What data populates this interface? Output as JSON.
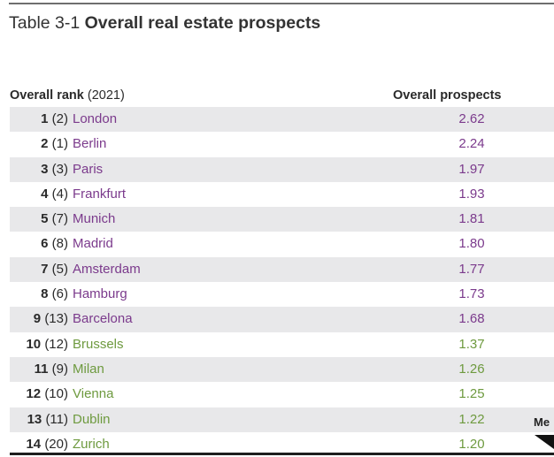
{
  "title": {
    "number": "Table 3-1",
    "name": "Overall real estate prospects"
  },
  "headers": {
    "rank_bold": "Overall rank",
    "rank_year": "(2021)",
    "prospects": "Overall prospects"
  },
  "colors": {
    "purple": "#7b3a8c",
    "green": "#6e9a3f",
    "row_shade": "#e8e8ea"
  },
  "rows": [
    {
      "rank": "1",
      "prev": "(2)",
      "city": "London",
      "prospects": "2.62",
      "group": "purple"
    },
    {
      "rank": "2",
      "prev": "(1)",
      "city": "Berlin",
      "prospects": "2.24",
      "group": "purple"
    },
    {
      "rank": "3",
      "prev": "(3)",
      "city": "Paris",
      "prospects": "1.97",
      "group": "purple"
    },
    {
      "rank": "4",
      "prev": "(4)",
      "city": "Frankfurt",
      "prospects": "1.93",
      "group": "purple"
    },
    {
      "rank": "5",
      "prev": "(7)",
      "city": "Munich",
      "prospects": "1.81",
      "group": "purple"
    },
    {
      "rank": "6",
      "prev": "(8)",
      "city": "Madrid",
      "prospects": "1.80",
      "group": "purple"
    },
    {
      "rank": "7",
      "prev": "(5)",
      "city": "Amsterdam",
      "prospects": "1.77",
      "group": "purple"
    },
    {
      "rank": "8",
      "prev": "(6)",
      "city": "Hamburg",
      "prospects": "1.73",
      "group": "purple"
    },
    {
      "rank": "9",
      "prev": "(13)",
      "city": "Barcelona",
      "prospects": "1.68",
      "group": "purple"
    },
    {
      "rank": "10",
      "prev": "(12)",
      "city": "Brussels",
      "prospects": "1.37",
      "group": "green"
    },
    {
      "rank": "11",
      "prev": "(9)",
      "city": "Milan",
      "prospects": "1.26",
      "group": "green"
    },
    {
      "rank": "12",
      "prev": "(10)",
      "city": "Vienna",
      "prospects": "1.25",
      "group": "green"
    },
    {
      "rank": "13",
      "prev": "(11)",
      "city": "Dublin",
      "prospects": "1.22",
      "group": "green"
    },
    {
      "rank": "14",
      "prev": "(20)",
      "city": "Zurich",
      "prospects": "1.20",
      "group": "green"
    }
  ],
  "legend": {
    "label_partial": "Me"
  }
}
